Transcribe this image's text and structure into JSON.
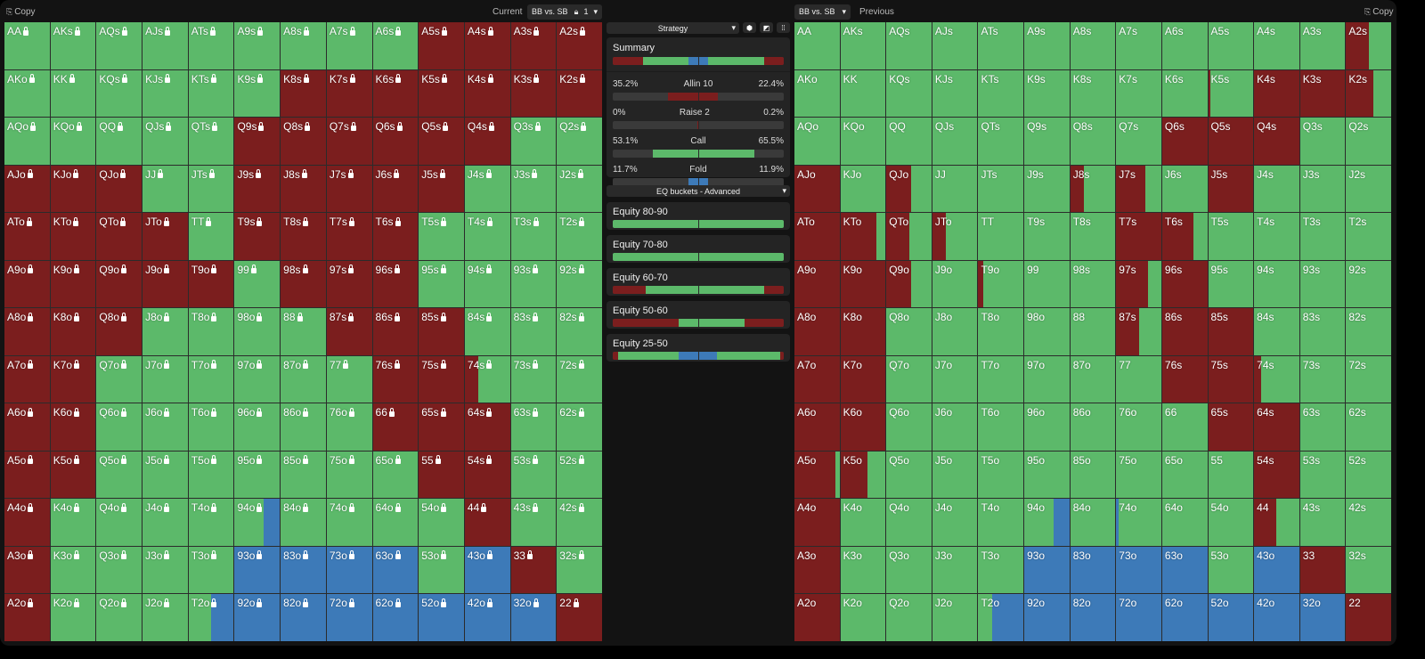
{
  "colors": {
    "R": "#7b1e1e",
    "G": "#5cb96a",
    "B": "#3d7ab8"
  },
  "left_header": {
    "copy": "Copy",
    "current": "Current",
    "matchup": "BB vs. SB",
    "lock_count": "1"
  },
  "right_header": {
    "matchup": "BB vs. SB",
    "previous": "Previous",
    "copy": "Copy"
  },
  "hands": [
    [
      "AA",
      "AKs",
      "AQs",
      "AJs",
      "ATs",
      "A9s",
      "A8s",
      "A7s",
      "A6s",
      "A5s",
      "A4s",
      "A3s",
      "A2s"
    ],
    [
      "AKo",
      "KK",
      "KQs",
      "KJs",
      "KTs",
      "K9s",
      "K8s",
      "K7s",
      "K6s",
      "K5s",
      "K4s",
      "K3s",
      "K2s"
    ],
    [
      "AQo",
      "KQo",
      "QQ",
      "QJs",
      "QTs",
      "Q9s",
      "Q8s",
      "Q7s",
      "Q6s",
      "Q5s",
      "Q4s",
      "Q3s",
      "Q2s"
    ],
    [
      "AJo",
      "KJo",
      "QJo",
      "JJ",
      "JTs",
      "J9s",
      "J8s",
      "J7s",
      "J6s",
      "J5s",
      "J4s",
      "J3s",
      "J2s"
    ],
    [
      "ATo",
      "KTo",
      "QTo",
      "JTo",
      "TT",
      "T9s",
      "T8s",
      "T7s",
      "T6s",
      "T5s",
      "T4s",
      "T3s",
      "T2s"
    ],
    [
      "A9o",
      "K9o",
      "Q9o",
      "J9o",
      "T9o",
      "99",
      "98s",
      "97s",
      "96s",
      "95s",
      "94s",
      "93s",
      "92s"
    ],
    [
      "A8o",
      "K8o",
      "Q8o",
      "J8o",
      "T8o",
      "98o",
      "88",
      "87s",
      "86s",
      "85s",
      "84s",
      "83s",
      "82s"
    ],
    [
      "A7o",
      "K7o",
      "Q7o",
      "J7o",
      "T7o",
      "97o",
      "87o",
      "77",
      "76s",
      "75s",
      "74s",
      "73s",
      "72s"
    ],
    [
      "A6o",
      "K6o",
      "Q6o",
      "J6o",
      "T6o",
      "96o",
      "86o",
      "76o",
      "66",
      "65s",
      "64s",
      "63s",
      "62s"
    ],
    [
      "A5o",
      "K5o",
      "Q5o",
      "J5o",
      "T5o",
      "95o",
      "85o",
      "75o",
      "65o",
      "55",
      "54s",
      "53s",
      "52s"
    ],
    [
      "A4o",
      "K4o",
      "Q4o",
      "J4o",
      "T4o",
      "94o",
      "84o",
      "74o",
      "64o",
      "54o",
      "44",
      "43s",
      "42s"
    ],
    [
      "A3o",
      "K3o",
      "Q3o",
      "J3o",
      "T3o",
      "93o",
      "83o",
      "73o",
      "63o",
      "53o",
      "43o",
      "33",
      "32s"
    ],
    [
      "A2o",
      "K2o",
      "Q2o",
      "J2o",
      "T2o",
      "92o",
      "82o",
      "72o",
      "62o",
      "52o",
      "42o",
      "32o",
      "22"
    ]
  ],
  "current_grid": [
    [
      "G",
      "G",
      "G",
      "G",
      "G",
      "G",
      "G",
      "G",
      "G",
      "R",
      "R",
      "R",
      "R"
    ],
    [
      "G",
      "G",
      "G",
      "G",
      "G",
      "G",
      "R",
      "R",
      "R",
      "R",
      "R",
      "R",
      "R"
    ],
    [
      "G",
      "G",
      "G",
      "G",
      "G",
      "R",
      "R",
      "R",
      "R",
      "R",
      "R",
      "G",
      "G"
    ],
    [
      "R",
      "R",
      "R",
      "G",
      "G",
      "R",
      "R",
      "R",
      "R",
      "R",
      "G",
      "G",
      "G"
    ],
    [
      "R",
      "R",
      "R",
      "R",
      "G",
      "R",
      "R",
      "R",
      "R",
      "G",
      "G",
      "G",
      "G"
    ],
    [
      "R",
      "R",
      "R",
      "R",
      "R",
      "G",
      "R",
      "R",
      "R",
      "G",
      "G",
      "G",
      "G"
    ],
    [
      "R",
      "R",
      "R",
      "G",
      "G",
      "G",
      "G",
      "R",
      "R",
      "R",
      "G",
      "G",
      "G"
    ],
    [
      "R",
      "R",
      "G",
      "G",
      "G",
      "G",
      "G",
      "G",
      "R",
      "R",
      "R30G70",
      "G",
      "G"
    ],
    [
      "R",
      "R",
      "G",
      "G",
      "G",
      "G",
      "G",
      "G",
      "R",
      "R",
      "R",
      "G",
      "G"
    ],
    [
      "R",
      "R",
      "G",
      "G",
      "G",
      "G",
      "G",
      "G",
      "G",
      "R",
      "R",
      "G",
      "G"
    ],
    [
      "R",
      "G",
      "G",
      "G",
      "G",
      "G65B35",
      "G",
      "G",
      "G",
      "G",
      "R",
      "G",
      "G"
    ],
    [
      "R",
      "G",
      "G",
      "G",
      "G",
      "B",
      "B",
      "B",
      "B",
      "G",
      "B",
      "R",
      "G"
    ],
    [
      "R",
      "G",
      "G",
      "G",
      "G50B50",
      "B",
      "B",
      "B",
      "B",
      "B",
      "B",
      "B",
      "R"
    ]
  ],
  "previous_grid": [
    [
      "G",
      "G",
      "G",
      "G",
      "G",
      "G",
      "G",
      "G",
      "G",
      "G",
      "G",
      "G",
      "R50G50"
    ],
    [
      "G",
      "G",
      "G",
      "G",
      "G",
      "G",
      "G",
      "G",
      "G",
      "R5G95",
      "R",
      "R",
      "R60G40"
    ],
    [
      "G",
      "G",
      "G",
      "G",
      "G",
      "G",
      "G",
      "G",
      "R",
      "R",
      "R",
      "G",
      "G"
    ],
    [
      "R",
      "G",
      "R55G45",
      "G",
      "G",
      "G",
      "R30G70",
      "R65G35",
      "G",
      "R",
      "G",
      "G",
      "G"
    ],
    [
      "R",
      "R80G20",
      "R50G50",
      "R30G70",
      "G",
      "G",
      "G",
      "R",
      "R70G30",
      "G",
      "G",
      "G",
      "G"
    ],
    [
      "R",
      "R",
      "R55G45",
      "G",
      "R10G90",
      "G",
      "G",
      "R70G30",
      "R",
      "G",
      "G",
      "G",
      "G"
    ],
    [
      "R",
      "R",
      "G",
      "G",
      "G",
      "G",
      "G",
      "R50G50",
      "R",
      "R",
      "G",
      "G",
      "G"
    ],
    [
      "R",
      "R",
      "G",
      "G",
      "G",
      "G",
      "G",
      "G",
      "R",
      "R",
      "R15G85",
      "G",
      "G"
    ],
    [
      "R",
      "R",
      "G",
      "G",
      "G",
      "G",
      "G",
      "G",
      "G",
      "R",
      "R",
      "G",
      "G"
    ],
    [
      "R90G10",
      "R60G40",
      "G",
      "G",
      "G",
      "G",
      "G",
      "G",
      "G",
      "G",
      "R",
      "G",
      "G"
    ],
    [
      "R",
      "G",
      "G",
      "G",
      "G",
      "G65B35",
      "G",
      "B5G95",
      "G",
      "G",
      "R50G50",
      "G",
      "G"
    ],
    [
      "R",
      "G",
      "G",
      "G",
      "G",
      "B",
      "B",
      "B",
      "B",
      "G",
      "B",
      "R",
      "G"
    ],
    [
      "R",
      "G",
      "G",
      "G",
      "G30B70",
      "B",
      "B",
      "B",
      "B",
      "B",
      "B",
      "B",
      "R"
    ]
  ],
  "strategy": {
    "dropdown": "Strategy",
    "icons": [
      "cube-icon",
      "contrast-icon",
      "grid-icon"
    ]
  },
  "summary": {
    "title": "Summary",
    "left": [
      [
        "R",
        35.2
      ],
      [
        "G",
        53.1
      ],
      [
        "B",
        11.7
      ]
    ],
    "right": [
      [
        "B",
        11.9
      ],
      [
        "G",
        65.5
      ],
      [
        "R",
        22.4
      ]
    ],
    "actions": [
      {
        "name": "Allin 10",
        "left": "35.2%",
        "right": "22.4%",
        "lv": 35.2,
        "rv": 22.4,
        "color": "R"
      },
      {
        "name": "Raise 2",
        "left": "0%",
        "right": "0.2%",
        "lv": 0,
        "rv": 0.2,
        "color": "R"
      },
      {
        "name": "Call",
        "left": "53.1%",
        "right": "65.5%",
        "lv": 53.1,
        "rv": 65.5,
        "color": "G"
      },
      {
        "name": "Fold",
        "left": "11.7%",
        "right": "11.9%",
        "lv": 11.7,
        "rv": 11.9,
        "color": "B"
      }
    ]
  },
  "eq_dropdown": "EQ buckets - Advanced",
  "buckets": [
    {
      "title": "Equity 80-90",
      "left": [
        [
          "G",
          100
        ]
      ],
      "right": [
        [
          "G",
          100
        ]
      ]
    },
    {
      "title": "Equity 70-80",
      "left": [
        [
          "G",
          100
        ]
      ],
      "right": [
        [
          "G",
          100
        ]
      ]
    },
    {
      "title": "Equity 60-70",
      "left": [
        [
          "R",
          39
        ],
        [
          "G",
          61
        ]
      ],
      "right": [
        [
          "G",
          77
        ],
        [
          "R",
          23
        ]
      ]
    },
    {
      "title": "Equity 50-60",
      "left": [
        [
          "R",
          77
        ],
        [
          "G",
          23
        ]
      ],
      "right": [
        [
          "G",
          54
        ],
        [
          "R",
          46
        ]
      ]
    },
    {
      "title": "Equity 25-50",
      "left": [
        [
          "R",
          6
        ],
        [
          "G",
          71
        ],
        [
          "B",
          23
        ]
      ],
      "right": [
        [
          "B",
          22
        ],
        [
          "G",
          74
        ],
        [
          "R",
          4
        ]
      ]
    }
  ]
}
